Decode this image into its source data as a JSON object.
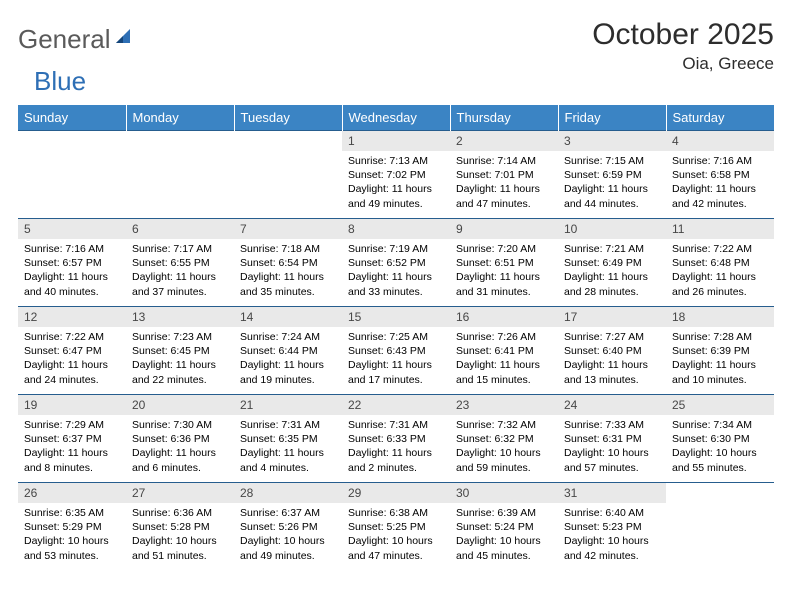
{
  "logo": {
    "part1": "General",
    "part2": "Blue",
    "accent_color": "#2e6fb5",
    "gray_color": "#5a5a5a"
  },
  "title": "October 2025",
  "location": "Oia, Greece",
  "colors": {
    "header_bg": "#3b84c4",
    "header_text": "#ffffff",
    "daynum_bg": "#e9e9e9",
    "daynum_text": "#474747",
    "row_border": "#265d8e",
    "body_text": "#000000",
    "title_text": "#2d2d2d"
  },
  "day_headers": [
    "Sunday",
    "Monday",
    "Tuesday",
    "Wednesday",
    "Thursday",
    "Friday",
    "Saturday"
  ],
  "weeks": [
    [
      {
        "n": "",
        "sr": "",
        "ss": "",
        "dl": ""
      },
      {
        "n": "",
        "sr": "",
        "ss": "",
        "dl": ""
      },
      {
        "n": "",
        "sr": "",
        "ss": "",
        "dl": ""
      },
      {
        "n": "1",
        "sr": "Sunrise: 7:13 AM",
        "ss": "Sunset: 7:02 PM",
        "dl": "Daylight: 11 hours and 49 minutes."
      },
      {
        "n": "2",
        "sr": "Sunrise: 7:14 AM",
        "ss": "Sunset: 7:01 PM",
        "dl": "Daylight: 11 hours and 47 minutes."
      },
      {
        "n": "3",
        "sr": "Sunrise: 7:15 AM",
        "ss": "Sunset: 6:59 PM",
        "dl": "Daylight: 11 hours and 44 minutes."
      },
      {
        "n": "4",
        "sr": "Sunrise: 7:16 AM",
        "ss": "Sunset: 6:58 PM",
        "dl": "Daylight: 11 hours and 42 minutes."
      }
    ],
    [
      {
        "n": "5",
        "sr": "Sunrise: 7:16 AM",
        "ss": "Sunset: 6:57 PM",
        "dl": "Daylight: 11 hours and 40 minutes."
      },
      {
        "n": "6",
        "sr": "Sunrise: 7:17 AM",
        "ss": "Sunset: 6:55 PM",
        "dl": "Daylight: 11 hours and 37 minutes."
      },
      {
        "n": "7",
        "sr": "Sunrise: 7:18 AM",
        "ss": "Sunset: 6:54 PM",
        "dl": "Daylight: 11 hours and 35 minutes."
      },
      {
        "n": "8",
        "sr": "Sunrise: 7:19 AM",
        "ss": "Sunset: 6:52 PM",
        "dl": "Daylight: 11 hours and 33 minutes."
      },
      {
        "n": "9",
        "sr": "Sunrise: 7:20 AM",
        "ss": "Sunset: 6:51 PM",
        "dl": "Daylight: 11 hours and 31 minutes."
      },
      {
        "n": "10",
        "sr": "Sunrise: 7:21 AM",
        "ss": "Sunset: 6:49 PM",
        "dl": "Daylight: 11 hours and 28 minutes."
      },
      {
        "n": "11",
        "sr": "Sunrise: 7:22 AM",
        "ss": "Sunset: 6:48 PM",
        "dl": "Daylight: 11 hours and 26 minutes."
      }
    ],
    [
      {
        "n": "12",
        "sr": "Sunrise: 7:22 AM",
        "ss": "Sunset: 6:47 PM",
        "dl": "Daylight: 11 hours and 24 minutes."
      },
      {
        "n": "13",
        "sr": "Sunrise: 7:23 AM",
        "ss": "Sunset: 6:45 PM",
        "dl": "Daylight: 11 hours and 22 minutes."
      },
      {
        "n": "14",
        "sr": "Sunrise: 7:24 AM",
        "ss": "Sunset: 6:44 PM",
        "dl": "Daylight: 11 hours and 19 minutes."
      },
      {
        "n": "15",
        "sr": "Sunrise: 7:25 AM",
        "ss": "Sunset: 6:43 PM",
        "dl": "Daylight: 11 hours and 17 minutes."
      },
      {
        "n": "16",
        "sr": "Sunrise: 7:26 AM",
        "ss": "Sunset: 6:41 PM",
        "dl": "Daylight: 11 hours and 15 minutes."
      },
      {
        "n": "17",
        "sr": "Sunrise: 7:27 AM",
        "ss": "Sunset: 6:40 PM",
        "dl": "Daylight: 11 hours and 13 minutes."
      },
      {
        "n": "18",
        "sr": "Sunrise: 7:28 AM",
        "ss": "Sunset: 6:39 PM",
        "dl": "Daylight: 11 hours and 10 minutes."
      }
    ],
    [
      {
        "n": "19",
        "sr": "Sunrise: 7:29 AM",
        "ss": "Sunset: 6:37 PM",
        "dl": "Daylight: 11 hours and 8 minutes."
      },
      {
        "n": "20",
        "sr": "Sunrise: 7:30 AM",
        "ss": "Sunset: 6:36 PM",
        "dl": "Daylight: 11 hours and 6 minutes."
      },
      {
        "n": "21",
        "sr": "Sunrise: 7:31 AM",
        "ss": "Sunset: 6:35 PM",
        "dl": "Daylight: 11 hours and 4 minutes."
      },
      {
        "n": "22",
        "sr": "Sunrise: 7:31 AM",
        "ss": "Sunset: 6:33 PM",
        "dl": "Daylight: 11 hours and 2 minutes."
      },
      {
        "n": "23",
        "sr": "Sunrise: 7:32 AM",
        "ss": "Sunset: 6:32 PM",
        "dl": "Daylight: 10 hours and 59 minutes."
      },
      {
        "n": "24",
        "sr": "Sunrise: 7:33 AM",
        "ss": "Sunset: 6:31 PM",
        "dl": "Daylight: 10 hours and 57 minutes."
      },
      {
        "n": "25",
        "sr": "Sunrise: 7:34 AM",
        "ss": "Sunset: 6:30 PM",
        "dl": "Daylight: 10 hours and 55 minutes."
      }
    ],
    [
      {
        "n": "26",
        "sr": "Sunrise: 6:35 AM",
        "ss": "Sunset: 5:29 PM",
        "dl": "Daylight: 10 hours and 53 minutes."
      },
      {
        "n": "27",
        "sr": "Sunrise: 6:36 AM",
        "ss": "Sunset: 5:28 PM",
        "dl": "Daylight: 10 hours and 51 minutes."
      },
      {
        "n": "28",
        "sr": "Sunrise: 6:37 AM",
        "ss": "Sunset: 5:26 PM",
        "dl": "Daylight: 10 hours and 49 minutes."
      },
      {
        "n": "29",
        "sr": "Sunrise: 6:38 AM",
        "ss": "Sunset: 5:25 PM",
        "dl": "Daylight: 10 hours and 47 minutes."
      },
      {
        "n": "30",
        "sr": "Sunrise: 6:39 AM",
        "ss": "Sunset: 5:24 PM",
        "dl": "Daylight: 10 hours and 45 minutes."
      },
      {
        "n": "31",
        "sr": "Sunrise: 6:40 AM",
        "ss": "Sunset: 5:23 PM",
        "dl": "Daylight: 10 hours and 42 minutes."
      },
      {
        "n": "",
        "sr": "",
        "ss": "",
        "dl": ""
      }
    ]
  ]
}
